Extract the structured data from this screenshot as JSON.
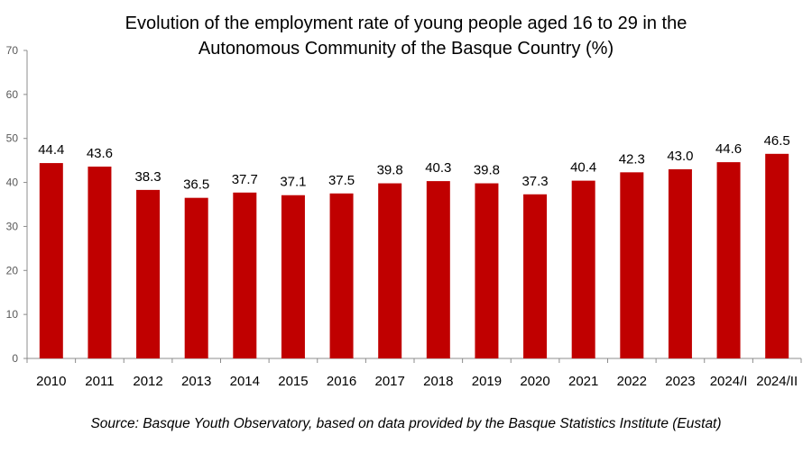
{
  "chart_data": {
    "type": "bar",
    "title_line1": "Evolution of the employment rate of young people aged 16 to 29 in the",
    "title_line2": "Autonomous Community of the Basque Country (%)",
    "categories": [
      "2010",
      "2011",
      "2012",
      "2013",
      "2014",
      "2015",
      "2016",
      "2017",
      "2018",
      "2019",
      "2020",
      "2021",
      "2022",
      "2023",
      "2024/I",
      "2024/II"
    ],
    "values": [
      44.4,
      43.6,
      38.3,
      36.5,
      37.7,
      37.1,
      37.5,
      39.8,
      40.3,
      39.8,
      37.3,
      40.4,
      42.3,
      43.0,
      44.6,
      46.5
    ],
    "value_labels": [
      "44.4",
      "43.6",
      "38.3",
      "36.5",
      "37.7",
      "37.1",
      "37.5",
      "39.8",
      "40.3",
      "39.8",
      "37.3",
      "40.4",
      "42.3",
      "43.0",
      "44.6",
      "46.5"
    ],
    "ylim": [
      0,
      70
    ],
    "yticks": [
      "0",
      "10",
      "20",
      "30",
      "40",
      "50",
      "60",
      "70"
    ],
    "bar_color": "#C00000",
    "xlabel": "",
    "ylabel": "",
    "grid": false
  },
  "source_note": "Source: Basque Youth Observatory, based on data provided by the Basque Statistics Institute (Eustat)"
}
